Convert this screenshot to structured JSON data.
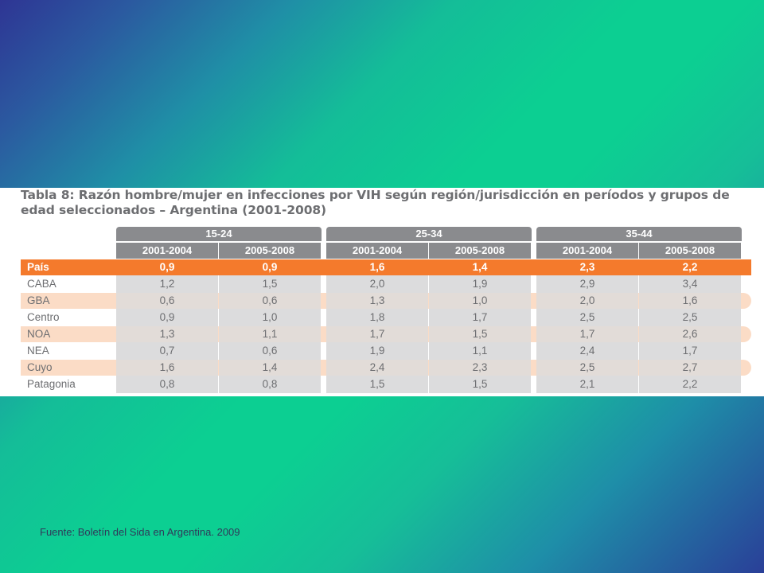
{
  "table": {
    "title": "Tabla 8: Razón hombre/mujer en infecciones por VIH según región/jurisdicción en períodos y grupos de edad seleccionados – Argentina (2001-2008)",
    "age_groups": [
      "15-24",
      "25-34",
      "35-44"
    ],
    "periods": [
      "2001-2004",
      "2005-2008",
      "2001-2004",
      "2005-2008",
      "2001-2004",
      "2005-2008"
    ],
    "rows": [
      {
        "label": "País",
        "values": [
          "0,9",
          "0,9",
          "1,6",
          "1,4",
          "2,3",
          "2,2"
        ]
      },
      {
        "label": "CABA",
        "values": [
          "1,2",
          "1,5",
          "2,0",
          "1,9",
          "2,9",
          "3,4"
        ]
      },
      {
        "label": "GBA",
        "values": [
          "0,6",
          "0,6",
          "1,3",
          "1,0",
          "2,0",
          "1,6"
        ]
      },
      {
        "label": "Centro",
        "values": [
          "0,9",
          "1,0",
          "1,8",
          "1,7",
          "2,5",
          "2,5"
        ]
      },
      {
        "label": "NOA",
        "values": [
          "1,3",
          "1,1",
          "1,7",
          "1,5",
          "1,7",
          "2,6"
        ]
      },
      {
        "label": "NEA",
        "values": [
          "0,7",
          "0,6",
          "1,9",
          "1,1",
          "2,4",
          "1,7"
        ]
      },
      {
        "label": "Cuyo",
        "values": [
          "1,6",
          "1,4",
          "2,4",
          "2,3",
          "2,5",
          "2,7"
        ]
      },
      {
        "label": "Patagonia",
        "values": [
          "0,8",
          "0,8",
          "1,5",
          "1,5",
          "2,1",
          "2,2"
        ]
      }
    ]
  },
  "source": "Fuente: Boletín del Sida en Argentina. 2009",
  "colors": {
    "highlight_row": "#f47a2c",
    "alt_row": "#fbdcc6",
    "header_gray": "#8a8b8e",
    "cell_gray": "#dcdcdd"
  }
}
